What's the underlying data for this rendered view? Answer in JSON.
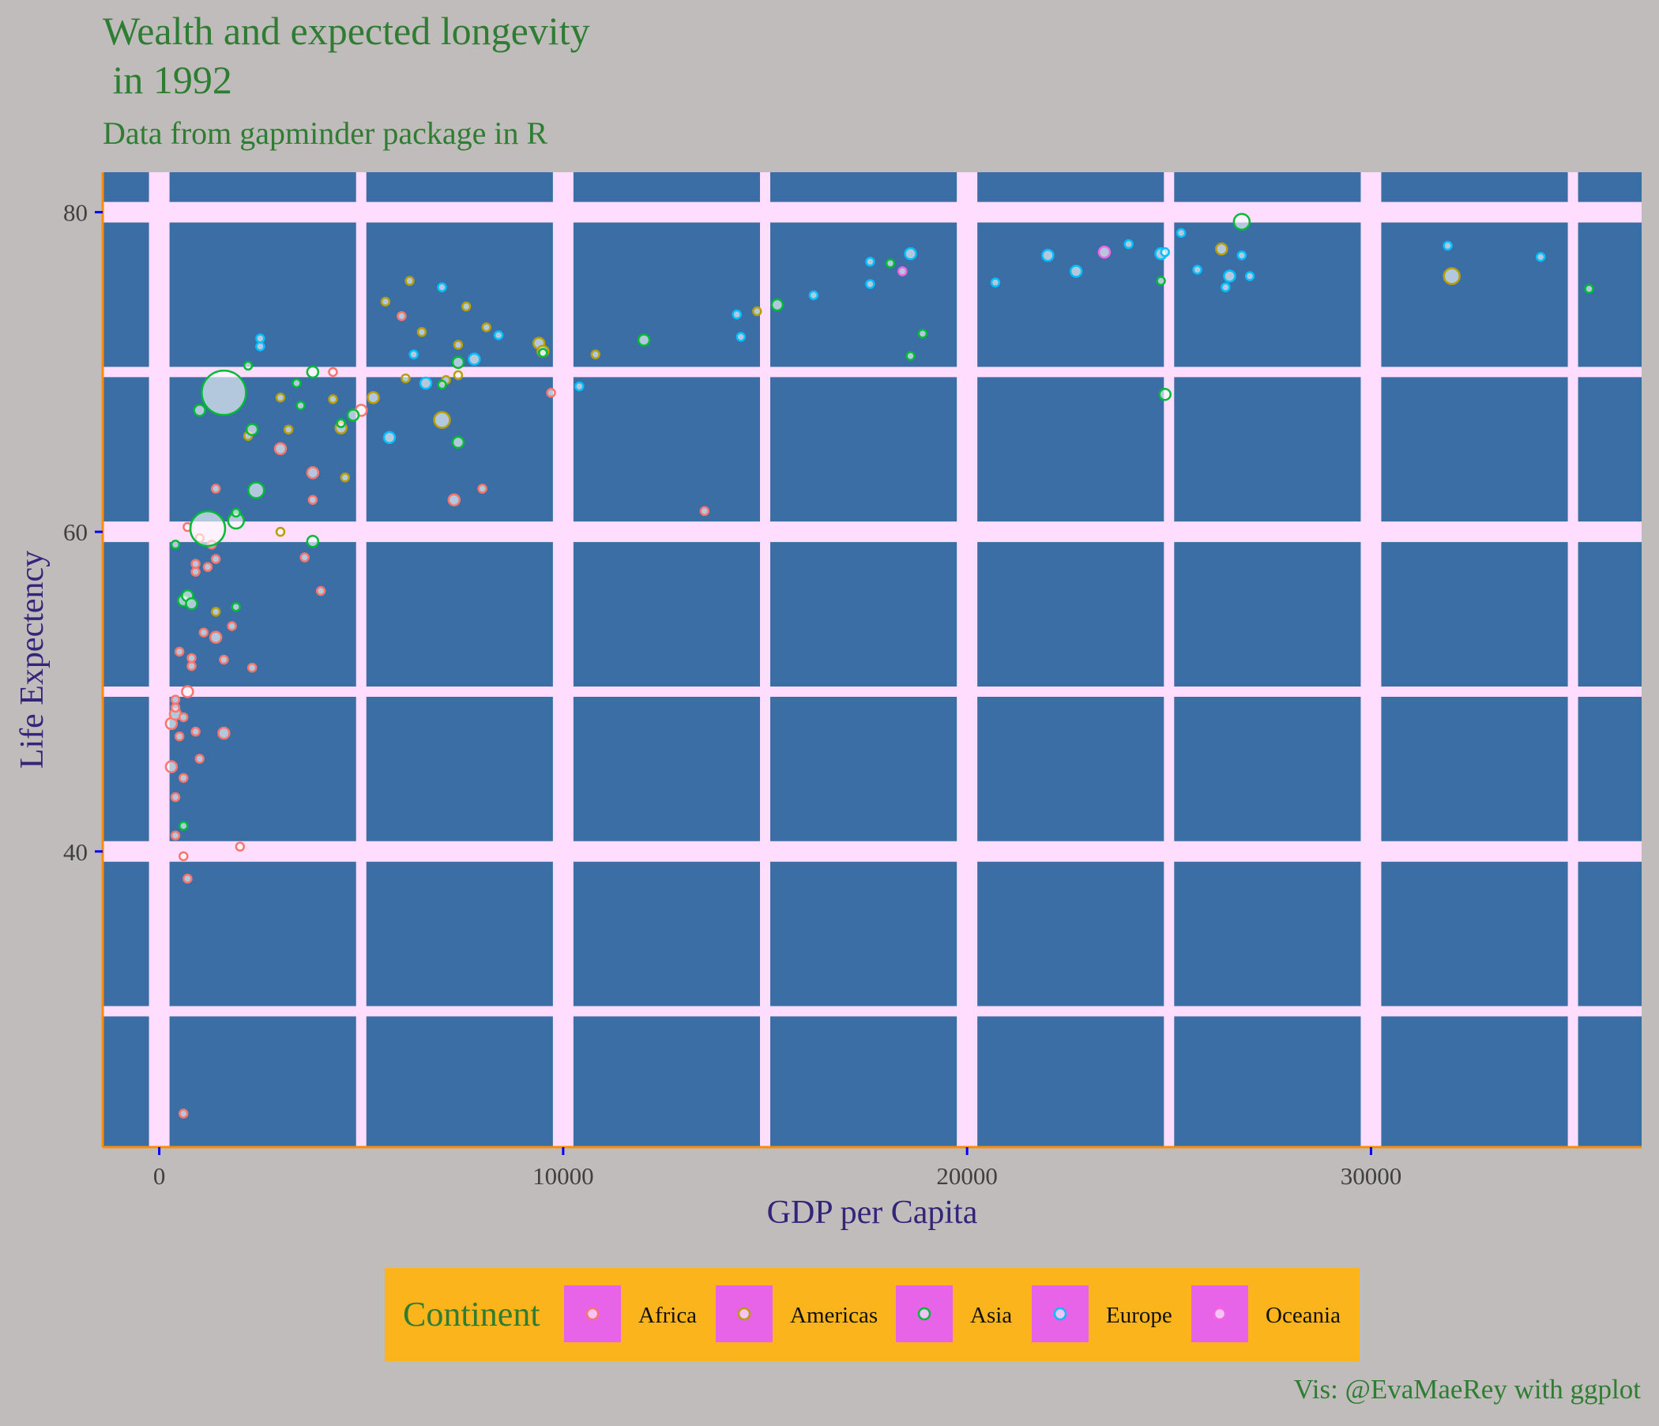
{
  "chart_data": {
    "type": "scatter",
    "title": "Wealth and expected longevity\n in 1992",
    "subtitle": "Data from gapminder package in R",
    "xlabel": "GDP per Capita",
    "ylabel": "Life Expectency",
    "caption": "Vis: @EvaMaeRey with ggplot",
    "xlim": [
      -1400,
      36700
    ],
    "ylim": [
      21.5,
      82.5
    ],
    "x_ticks": [
      0,
      10000,
      20000,
      30000
    ],
    "y_ticks": [
      40,
      60,
      80
    ],
    "grid": true,
    "legend": {
      "title": "Continent",
      "position": "bottom",
      "entries": [
        "Africa",
        "Americas",
        "Asia",
        "Europe",
        "Oceania"
      ]
    },
    "colors": {
      "background": "#c0bcbb",
      "panel": "#3a6ea5",
      "gridline": "#ffddff",
      "axis_line": "#ff8c00",
      "tick": "#0000ff",
      "title": "#2e7d32",
      "axis_title": "#33257a",
      "legend_bg": "#fcb41c",
      "legend_key": "#e764e8",
      "Africa": "#f8766d",
      "Americas": "#b79f00",
      "Asia": "#00ba38",
      "Europe": "#00bfff",
      "Oceania": "#f564e3"
    },
    "series": [
      {
        "name": "Africa",
        "points": [
          [
            600,
            23.6,
            0
          ],
          [
            2000,
            40.3,
            0
          ],
          [
            400,
            41.0,
            0
          ],
          [
            600,
            39.7,
            0
          ],
          [
            700,
            38.3,
            0
          ],
          [
            400,
            43.4,
            0
          ],
          [
            600,
            44.6,
            0
          ],
          [
            300,
            45.3,
            1
          ],
          [
            500,
            47.2,
            0
          ],
          [
            1600,
            47.4,
            1
          ],
          [
            300,
            48.0,
            1
          ],
          [
            400,
            48.6,
            1
          ],
          [
            600,
            48.4,
            0
          ],
          [
            700,
            50.0,
            1
          ],
          [
            400,
            49.5,
            0
          ],
          [
            400,
            49.0,
            0
          ],
          [
            900,
            47.5,
            0
          ],
          [
            1000,
            45.8,
            0
          ],
          [
            800,
            51.6,
            0
          ],
          [
            800,
            52.1,
            0
          ],
          [
            1600,
            52.0,
            0
          ],
          [
            500,
            52.5,
            0
          ],
          [
            2300,
            51.5,
            0
          ],
          [
            1100,
            53.7,
            0
          ],
          [
            1400,
            53.4,
            1
          ],
          [
            1800,
            54.1,
            0
          ],
          [
            900,
            57.5,
            0
          ],
          [
            1200,
            57.8,
            0
          ],
          [
            900,
            58.0,
            0
          ],
          [
            1400,
            58.3,
            0
          ],
          [
            1300,
            59.2,
            0
          ],
          [
            1000,
            59.6,
            0
          ],
          [
            700,
            60.3,
            0
          ],
          [
            1400,
            62.7,
            0
          ],
          [
            3600,
            58.4,
            0
          ],
          [
            4000,
            56.3,
            0
          ],
          [
            3800,
            62.0,
            0
          ],
          [
            3800,
            63.7,
            1
          ],
          [
            3000,
            65.2,
            1
          ],
          [
            5000,
            67.6,
            1
          ],
          [
            4300,
            70.0,
            0
          ],
          [
            6000,
            73.5,
            0
          ],
          [
            7300,
            62.0,
            1
          ],
          [
            8000,
            62.7,
            0
          ],
          [
            9700,
            68.7,
            0
          ],
          [
            13500,
            61.3,
            0
          ]
        ]
      },
      {
        "name": "Americas",
        "points": [
          [
            1400,
            55.0,
            0
          ],
          [
            3000,
            60.0,
            0
          ],
          [
            2200,
            66.0,
            0
          ],
          [
            3200,
            66.4,
            0
          ],
          [
            3000,
            68.4,
            0
          ],
          [
            4300,
            68.3,
            0
          ],
          [
            4500,
            66.5,
            1
          ],
          [
            4600,
            63.4,
            0
          ],
          [
            5300,
            68.4,
            1
          ],
          [
            6500,
            72.5,
            0
          ],
          [
            7100,
            69.5,
            0
          ],
          [
            7400,
            69.8,
            0
          ],
          [
            7400,
            71.7,
            0
          ],
          [
            6100,
            69.6,
            0
          ],
          [
            7000,
            67.0,
            2
          ],
          [
            5600,
            74.4,
            0
          ],
          [
            6200,
            75.7,
            0
          ],
          [
            7600,
            74.1,
            0
          ],
          [
            8100,
            72.8,
            0
          ],
          [
            9400,
            71.8,
            1
          ],
          [
            9500,
            71.3,
            1
          ],
          [
            10800,
            71.1,
            0
          ],
          [
            14800,
            73.8,
            0
          ],
          [
            26300,
            77.7,
            1
          ],
          [
            32000,
            76.0,
            2
          ]
        ]
      },
      {
        "name": "Asia",
        "points": [
          [
            400,
            59.2,
            0
          ],
          [
            600,
            55.7,
            1
          ],
          [
            700,
            56.0,
            1
          ],
          [
            800,
            55.5,
            1
          ],
          [
            600,
            41.6,
            0
          ],
          [
            1900,
            55.3,
            0
          ],
          [
            1200,
            60.2,
            5
          ],
          [
            1600,
            68.7,
            4
          ],
          [
            1900,
            60.7,
            2
          ],
          [
            2400,
            62.6,
            2
          ],
          [
            1900,
            61.2,
            0
          ],
          [
            2300,
            66.4,
            1
          ],
          [
            1000,
            67.6,
            1
          ],
          [
            2200,
            70.4,
            0
          ],
          [
            3400,
            69.3,
            0
          ],
          [
            3500,
            67.9,
            0
          ],
          [
            3800,
            70.0,
            1
          ],
          [
            3800,
            59.4,
            1
          ],
          [
            4800,
            67.3,
            1
          ],
          [
            4500,
            66.8,
            0
          ],
          [
            7000,
            69.2,
            0
          ],
          [
            7400,
            65.6,
            1
          ],
          [
            7400,
            70.6,
            1
          ],
          [
            9500,
            71.2,
            0
          ],
          [
            12000,
            72.0,
            1
          ],
          [
            15300,
            74.2,
            1
          ],
          [
            18100,
            76.8,
            0
          ],
          [
            18900,
            72.4,
            0
          ],
          [
            18600,
            71.0,
            0
          ],
          [
            24800,
            75.7,
            0
          ],
          [
            24900,
            68.6,
            1
          ],
          [
            26800,
            79.4,
            2
          ],
          [
            35400,
            75.2,
            0
          ]
        ]
      },
      {
        "name": "Europe",
        "points": [
          [
            2500,
            71.6,
            0
          ],
          [
            2500,
            72.1,
            0
          ],
          [
            5700,
            65.9,
            1
          ],
          [
            6300,
            71.1,
            0
          ],
          [
            6600,
            69.3,
            1
          ],
          [
            7000,
            75.3,
            0
          ],
          [
            7800,
            70.8,
            1
          ],
          [
            8400,
            72.3,
            0
          ],
          [
            10400,
            69.1,
            0
          ],
          [
            14300,
            73.6,
            0
          ],
          [
            14400,
            72.2,
            0
          ],
          [
            16200,
            74.8,
            0
          ],
          [
            17600,
            76.9,
            0
          ],
          [
            17600,
            75.5,
            0
          ],
          [
            18600,
            77.4,
            1
          ],
          [
            20700,
            75.6,
            0
          ],
          [
            22000,
            77.3,
            1
          ],
          [
            22700,
            76.3,
            1
          ],
          [
            24000,
            78.0,
            0
          ],
          [
            24800,
            77.4,
            1
          ],
          [
            24900,
            77.5,
            0
          ],
          [
            25300,
            78.7,
            0
          ],
          [
            25700,
            76.4,
            0
          ],
          [
            26400,
            75.3,
            0
          ],
          [
            26500,
            76.0,
            1
          ],
          [
            26800,
            77.3,
            0
          ],
          [
            27000,
            76.0,
            0
          ],
          [
            31900,
            77.9,
            0
          ],
          [
            34200,
            77.2,
            0
          ]
        ]
      },
      {
        "name": "Oceania",
        "points": [
          [
            18400,
            76.3,
            0
          ],
          [
            23400,
            77.5,
            1
          ]
        ]
      }
    ]
  }
}
